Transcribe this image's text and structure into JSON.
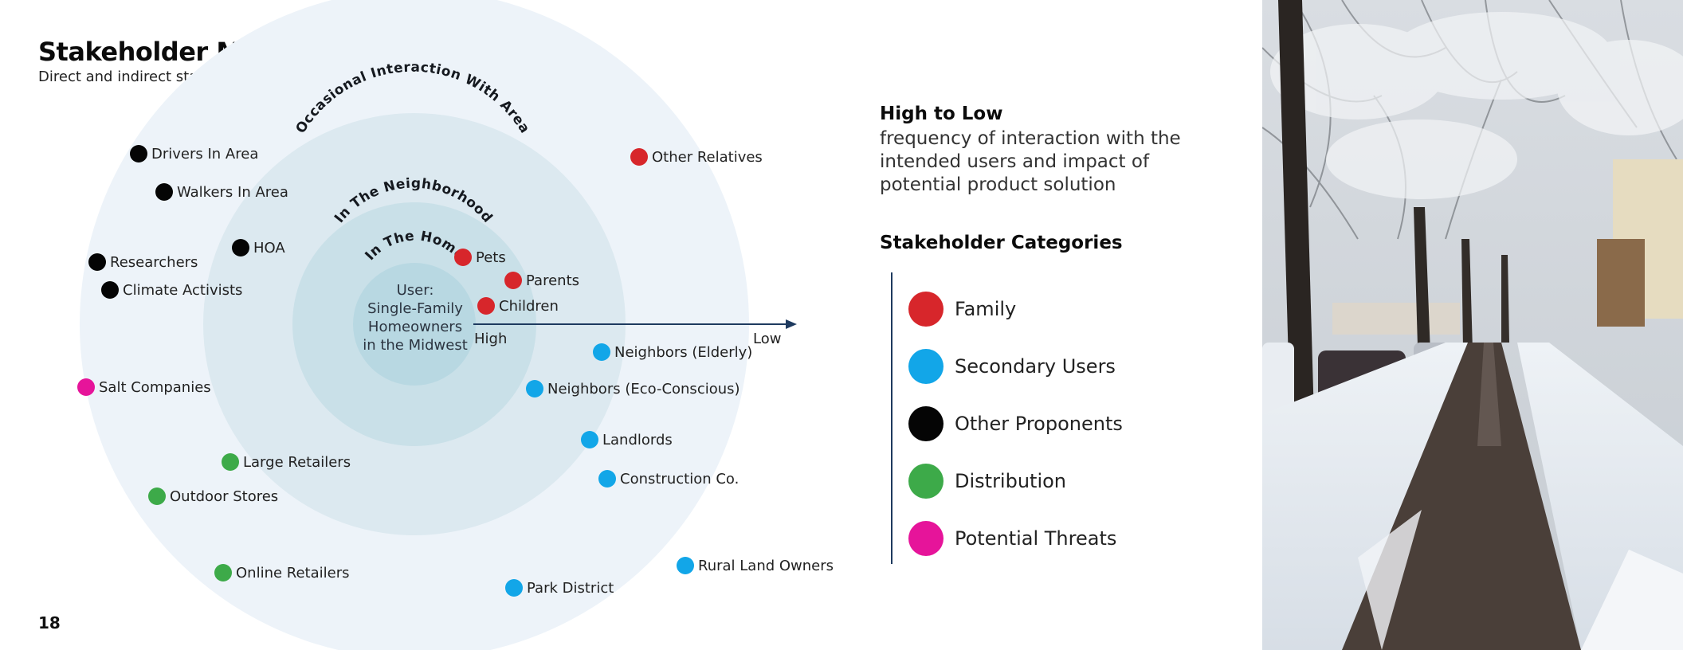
{
  "header": {
    "title": "Stakeholder Map",
    "subtitle": "Direct and indirect stakeholders to deicing products"
  },
  "page_number": "18",
  "diagram": {
    "rings": [
      {
        "label": "In The Home"
      },
      {
        "label": "In The Neighborhood"
      },
      {
        "label": "Occasional Interaction With Area"
      }
    ],
    "center": [
      "User:",
      "Single-Family",
      "Homeowners",
      "in the Midwest"
    ],
    "axis": {
      "high_label": "High",
      "low_label": "Low"
    },
    "stakeholders": [
      {
        "label": "Pets",
        "category": "family"
      },
      {
        "label": "Parents",
        "category": "family"
      },
      {
        "label": "Children",
        "category": "family"
      },
      {
        "label": "Other Relatives",
        "category": "family"
      },
      {
        "label": "Neighbors (Elderly)",
        "category": "secondary"
      },
      {
        "label": "Neighbors (Eco-Conscious)",
        "category": "secondary"
      },
      {
        "label": "Landlords",
        "category": "secondary"
      },
      {
        "label": "Construction Co.",
        "category": "secondary"
      },
      {
        "label": "Rural Land Owners",
        "category": "secondary"
      },
      {
        "label": "Park District",
        "category": "secondary"
      },
      {
        "label": "Drivers In Area",
        "category": "proponents"
      },
      {
        "label": "Walkers In Area",
        "category": "proponents"
      },
      {
        "label": "HOA",
        "category": "proponents"
      },
      {
        "label": "Researchers",
        "category": "proponents"
      },
      {
        "label": "Climate Activists",
        "category": "proponents"
      },
      {
        "label": "Salt Companies",
        "category": "threats"
      },
      {
        "label": "Large Retailers",
        "category": "distribution"
      },
      {
        "label": "Outdoor Stores",
        "category": "distribution"
      },
      {
        "label": "Online Retailers",
        "category": "distribution"
      }
    ]
  },
  "legend": {
    "axis_title": "High to Low",
    "axis_description": "frequency of interaction with the intended users and impact of potential product solution",
    "categories_title": "Stakeholder Categories",
    "categories": [
      {
        "key": "family",
        "label": "Family",
        "color": "#d7262b"
      },
      {
        "key": "secondary",
        "label": "Secondary Users",
        "color": "#12a6e8"
      },
      {
        "key": "proponents",
        "label": "Other Proponents",
        "color": "#050505"
      },
      {
        "key": "distribution",
        "label": "Distribution",
        "color": "#3daa49"
      },
      {
        "key": "threats",
        "label": "Potential Threats",
        "color": "#e6149a"
      }
    ]
  },
  "colors": {
    "ring_outer": "#edf3f9",
    "ring_mid": "#dce9f0",
    "ring_inner": "#c9e0e8",
    "ring_core": "#b8d8e2",
    "axis": "#1e3a5f"
  },
  "photo": {
    "icon": "snowy-street-photo"
  }
}
